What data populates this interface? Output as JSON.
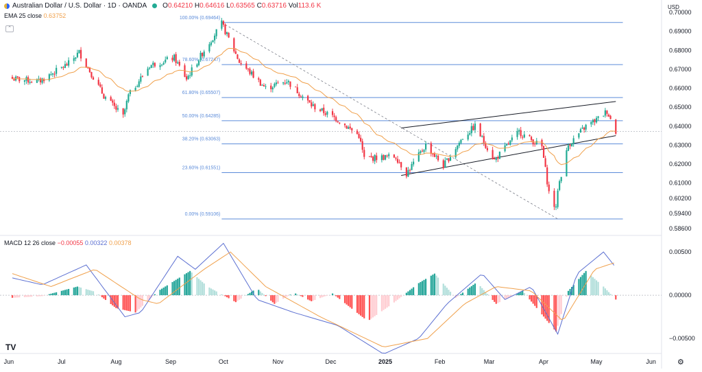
{
  "header": {
    "title": "Australian Dollar / U.S. Dollar · 1D · OANDA",
    "ohlc": [
      {
        "k": "O",
        "v": "0.64210"
      },
      {
        "k": "H",
        "v": "0.64616"
      },
      {
        "k": "L",
        "v": "0.63565"
      },
      {
        "k": "C",
        "v": "0.63716"
      },
      {
        "k": "Vol",
        "v": "113.6 K"
      }
    ]
  },
  "indicators": {
    "ema": {
      "label": "EMA 25 close",
      "value": "0.63752"
    },
    "macd": {
      "label": "MACD 12 26 close",
      "v1": "−0.00055",
      "v2": "0.00322",
      "v3": "0.00378"
    }
  },
  "currency": "USD",
  "colors": {
    "up": "#22ab94",
    "down": "#f23645",
    "ema": "#f0a04b",
    "fib": "#5b8bd9",
    "macd_line": "#5b6fd1",
    "signal_line": "#f0a04b"
  },
  "chart_data": [
    {
      "type": "candlestick",
      "title": "Australian Dollar / U.S. Dollar · 1D · OANDA",
      "ylabel": "USD",
      "ylim": [
        0.586,
        0.7
      ],
      "y_ticks": [
        "0.70000",
        "0.69000",
        "0.68000",
        "0.67000",
        "0.66000",
        "0.65000",
        "0.64000",
        "0.63000",
        "0.62000",
        "0.61000",
        "0.60200",
        "0.59400",
        "0.58600"
      ],
      "x_ticks": [
        "Jun",
        "Jul",
        "Aug",
        "Sep",
        "Oct",
        "Nov",
        "Dec",
        "2025",
        "Feb",
        "Mar",
        "Apr",
        "May",
        "Jun"
      ],
      "fib_levels": [
        {
          "label": "100.00% (0.69464)",
          "value": 0.69464
        },
        {
          "label": "78.60% (0.67247)",
          "value": 0.67247
        },
        {
          "label": "61.80% (0.65507)",
          "value": 0.65507
        },
        {
          "label": "50.00% (0.64285)",
          "value": 0.64285
        },
        {
          "label": "38.20% (0.63063)",
          "value": 0.63063
        },
        {
          "label": "23.60% (0.61551)",
          "value": 0.61551
        },
        {
          "label": "0.00% (0.59106)",
          "value": 0.59106
        }
      ],
      "current_price": 0.63716,
      "price_path": [
        [
          "2024-06-03",
          0.665
        ],
        [
          "2024-06-18",
          0.6635
        ],
        [
          "2024-07-05",
          0.673
        ],
        [
          "2024-07-11",
          0.679
        ],
        [
          "2024-07-25",
          0.656
        ],
        [
          "2024-08-05",
          0.645
        ],
        [
          "2024-08-08",
          0.656
        ],
        [
          "2024-08-20",
          0.672
        ],
        [
          "2024-09-03",
          0.676
        ],
        [
          "2024-09-10",
          0.665
        ],
        [
          "2024-09-20",
          0.68
        ],
        [
          "2024-09-30",
          0.694
        ],
        [
          "2024-10-10",
          0.674
        ],
        [
          "2024-10-25",
          0.66
        ],
        [
          "2024-11-06",
          0.664
        ],
        [
          "2024-11-20",
          0.651
        ],
        [
          "2024-12-04",
          0.644
        ],
        [
          "2024-12-17",
          0.635
        ],
        [
          "2024-12-20",
          0.623
        ],
        [
          "2025-01-07",
          0.624
        ],
        [
          "2025-01-13",
          0.615
        ],
        [
          "2025-01-24",
          0.63
        ],
        [
          "2025-02-03",
          0.619
        ],
        [
          "2025-02-14",
          0.634
        ],
        [
          "2025-02-21",
          0.64
        ],
        [
          "2025-03-04",
          0.622
        ],
        [
          "2025-03-18",
          0.637
        ],
        [
          "2025-03-31",
          0.629
        ],
        [
          "2025-04-04",
          0.605
        ],
        [
          "2025-04-08",
          0.596
        ],
        [
          "2025-04-09",
          0.607
        ],
        [
          "2025-04-15",
          0.63
        ],
        [
          "2025-04-25",
          0.64
        ],
        [
          "2025-05-02",
          0.644
        ],
        [
          "2025-05-07",
          0.648
        ],
        [
          "2025-05-12",
          0.6372
        ]
      ],
      "channel_upper": [
        [
          "2025-01-10",
          0.639
        ],
        [
          "2025-05-12",
          0.653
        ]
      ],
      "channel_lower": [
        [
          "2025-01-10",
          0.614
        ],
        [
          "2025-05-12",
          0.635
        ]
      ]
    },
    {
      "type": "bar",
      "title": "MACD 12 26 close",
      "ylim": [
        -0.0065,
        0.0062
      ],
      "y_ticks": [
        "0.00500",
        "0.00000",
        "−0.00500"
      ],
      "histogram_path": [
        [
          "2024-06-03",
          -0.0003
        ],
        [
          "2024-06-20",
          -0.0001
        ],
        [
          "2024-07-10",
          0.001
        ],
        [
          "2024-07-20",
          0.0004
        ],
        [
          "2024-08-01",
          -0.0015
        ],
        [
          "2024-08-12",
          -0.002
        ],
        [
          "2024-08-25",
          0.0005
        ],
        [
          "2024-09-12",
          0.0028
        ],
        [
          "2024-09-22",
          0.001
        ],
        [
          "2024-10-08",
          -0.0008
        ],
        [
          "2024-10-20",
          0.0008
        ],
        [
          "2024-10-30",
          -0.001
        ],
        [
          "2024-11-10",
          0.0003
        ],
        [
          "2024-11-20",
          -0.0007
        ],
        [
          "2024-12-02",
          0.0002
        ],
        [
          "2024-12-22",
          -0.003
        ],
        [
          "2025-01-05",
          -0.001
        ],
        [
          "2025-01-20",
          0.0014
        ],
        [
          "2025-01-29",
          0.0025
        ],
        [
          "2025-02-10",
          -0.0003
        ],
        [
          "2025-02-22",
          0.0015
        ],
        [
          "2025-03-05",
          -0.001
        ],
        [
          "2025-03-20",
          0.0005
        ],
        [
          "2025-04-08",
          -0.0042
        ],
        [
          "2025-04-15",
          0.0005
        ],
        [
          "2025-04-25",
          0.0028
        ],
        [
          "2025-05-05",
          0.001
        ],
        [
          "2025-05-12",
          -0.0005
        ]
      ],
      "macd_path": [
        [
          "2024-06-03",
          0.002
        ],
        [
          "2024-06-20",
          0.0012
        ],
        [
          "2024-07-15",
          0.0035
        ],
        [
          "2024-08-06",
          -0.0025
        ],
        [
          "2024-08-15",
          -0.002
        ],
        [
          "2024-09-05",
          0.0045
        ],
        [
          "2024-09-15",
          0.003
        ],
        [
          "2024-10-01",
          0.006
        ],
        [
          "2024-10-20",
          -0.0005
        ],
        [
          "2024-11-10",
          -0.002
        ],
        [
          "2024-12-05",
          -0.0035
        ],
        [
          "2024-12-31",
          -0.0068
        ],
        [
          "2025-01-20",
          -0.005
        ],
        [
          "2025-02-05",
          -0.001
        ],
        [
          "2025-02-25",
          0.0025
        ],
        [
          "2025-03-10",
          -0.0005
        ],
        [
          "2025-03-25",
          0.001
        ],
        [
          "2025-04-09",
          -0.0045
        ],
        [
          "2025-04-20",
          0.0025
        ],
        [
          "2025-05-05",
          0.005
        ],
        [
          "2025-05-12",
          0.0032
        ]
      ],
      "signal_path": [
        [
          "2024-06-03",
          0.0025
        ],
        [
          "2024-06-25",
          0.001
        ],
        [
          "2024-07-20",
          0.003
        ],
        [
          "2024-08-15",
          -0.0005
        ],
        [
          "2024-08-25",
          -0.001
        ],
        [
          "2024-09-20",
          0.003
        ],
        [
          "2024-10-05",
          0.005
        ],
        [
          "2024-10-25",
          0.001
        ],
        [
          "2024-11-25",
          -0.0025
        ],
        [
          "2024-12-31",
          -0.006
        ],
        [
          "2025-01-25",
          -0.005
        ],
        [
          "2025-02-15",
          -0.001
        ],
        [
          "2025-03-05",
          0.001
        ],
        [
          "2025-03-25",
          0.0005
        ],
        [
          "2025-04-12",
          -0.003
        ],
        [
          "2025-04-30",
          0.003
        ],
        [
          "2025-05-12",
          0.0038
        ]
      ]
    }
  ]
}
